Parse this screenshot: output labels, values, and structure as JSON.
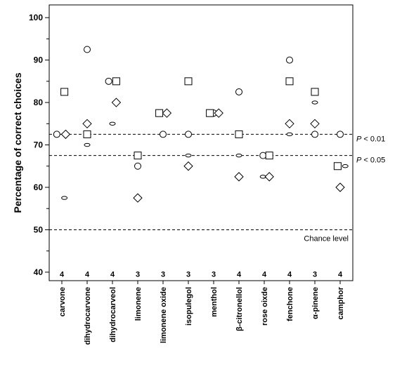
{
  "chart_data": {
    "type": "scatter",
    "title": "",
    "xlabel": "",
    "ylabel": "Percentage of correct choices",
    "ylim": [
      38,
      103
    ],
    "yticks": [
      40,
      50,
      60,
      70,
      80,
      90,
      100
    ],
    "grid": false,
    "categories": [
      "carvone",
      "dihydrocarvone",
      "dihydrocarveol",
      "limonene",
      "limonene oxide",
      "isopulegol",
      "menthol",
      "β-citronellol",
      "rose oixde",
      "fenchone",
      "α-pinene",
      "camphor"
    ],
    "counts": [
      "4",
      "4",
      "4",
      "3",
      "3",
      "3",
      "3",
      "4",
      "4",
      "4",
      "3",
      "4"
    ],
    "series": [
      {
        "marker": "square",
        "offset": 0,
        "values": [
          82.5,
          72.5,
          85,
          67.5,
          77.5,
          85,
          77.5,
          72.5,
          67.5,
          85,
          82.5,
          65
        ]
      },
      {
        "marker": "circle",
        "offset": 0,
        "values": [
          72.5,
          92.5,
          85,
          65,
          72.5,
          72.5,
          77.5,
          82.5,
          67.5,
          90,
          72.5,
          72.5
        ]
      },
      {
        "marker": "diamond",
        "offset": 0,
        "values": [
          72.5,
          75,
          80,
          57.5,
          77.5,
          65,
          77.5,
          62.5,
          62.5,
          75,
          75,
          60
        ]
      },
      {
        "marker": "small-ellipse",
        "offset": 0,
        "values": [
          57.5,
          70,
          75,
          65,
          72.5,
          67.5,
          77.5,
          67.5,
          62.5,
          72.5,
          80,
          65
        ]
      }
    ],
    "point_positions": {
      "square": [
        [
          0.1,
          82.5
        ],
        [
          0.0,
          72.5
        ],
        [
          0.15,
          85
        ],
        [
          0.0,
          67.5
        ],
        [
          -0.15,
          77.5
        ],
        [
          0.0,
          85
        ],
        [
          -0.15,
          77.5
        ],
        [
          0.0,
          72.5
        ],
        [
          0.2,
          67.5
        ],
        [
          0.0,
          85
        ],
        [
          0.0,
          82.5
        ],
        [
          -0.1,
          65
        ]
      ],
      "circle": [
        [
          -0.2,
          72.5
        ],
        [
          0.0,
          92.5
        ],
        [
          -0.15,
          85
        ],
        [
          0.0,
          65
        ],
        [
          0.0,
          72.5
        ],
        [
          0.0,
          72.5
        ],
        [
          0.0,
          77.5
        ],
        [
          0.0,
          82.5
        ],
        [
          -0.05,
          67.5
        ],
        [
          0.0,
          90
        ],
        [
          0.0,
          72.5
        ],
        [
          0.0,
          72.5
        ]
      ],
      "diamond": [
        [
          0.15,
          72.5
        ],
        [
          0.0,
          75
        ],
        [
          0.15,
          80
        ],
        [
          0.0,
          57.5
        ],
        [
          0.15,
          77.5
        ],
        [
          0.0,
          65
        ],
        [
          0.2,
          77.5
        ],
        [
          0.0,
          62.5
        ],
        [
          0.2,
          62.5
        ],
        [
          0.0,
          75
        ],
        [
          0.0,
          75
        ],
        [
          0.0,
          60
        ]
      ],
      "small-ellipse": [
        [
          0.1,
          57.5
        ],
        [
          0.0,
          70
        ],
        [
          0.0,
          75
        ],
        [
          0.0,
          65
        ],
        [
          0.0,
          72.5
        ],
        [
          0.0,
          67.5
        ],
        [
          0.0,
          77.5
        ],
        [
          0.0,
          67.5
        ],
        [
          -0.05,
          62.5
        ],
        [
          0.0,
          72.5
        ],
        [
          0.0,
          80
        ],
        [
          0.2,
          65
        ]
      ]
    },
    "reference_lines": [
      {
        "y": 72.5,
        "label": "P < 0.01"
      },
      {
        "y": 67.5,
        "label": "P < 0.05"
      },
      {
        "y": 50,
        "label": "Chance level"
      }
    ]
  }
}
